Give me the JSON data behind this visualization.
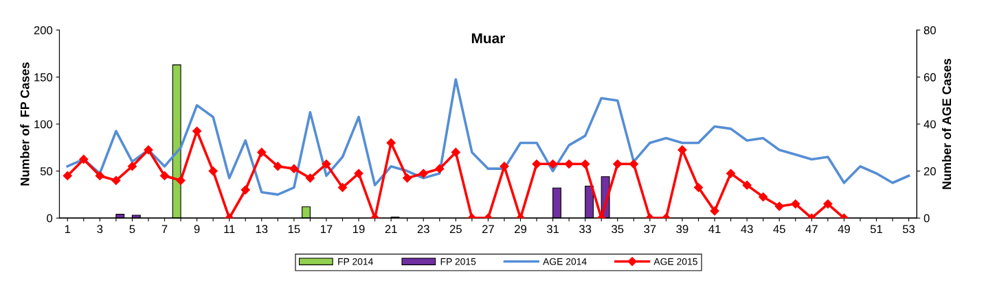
{
  "chart_data": {
    "type": "bar",
    "title": "Muar",
    "ylabel": "Number of  FP Cases",
    "y2label": "Number of AGE Cases",
    "categories": [
      "1",
      null,
      "3",
      null,
      "5",
      null,
      "7",
      null,
      "9",
      null,
      "11",
      null,
      "13",
      null,
      "15",
      null,
      "17",
      null,
      "19",
      null,
      "21",
      null,
      "23",
      null,
      "25",
      null,
      "27",
      null,
      "29",
      null,
      "31",
      null,
      "33",
      null,
      "35",
      null,
      "37",
      null,
      "39",
      null,
      "41",
      null,
      "43",
      null,
      "45",
      null,
      "47",
      null,
      "49",
      null,
      "51",
      null,
      "53"
    ],
    "ylim": [
      0,
      200
    ],
    "yticks": [
      0,
      50,
      100,
      150,
      200
    ],
    "y2lim": [
      0,
      80
    ],
    "y2ticks": [
      0,
      20,
      40,
      60,
      80
    ],
    "grid": false,
    "legend": "bottom",
    "series": [
      {
        "name": "FP 2014",
        "axis": "y",
        "color": "#92d050",
        "values": [
          null,
          null,
          null,
          null,
          null,
          null,
          null,
          163,
          null,
          null,
          null,
          null,
          null,
          null,
          null,
          12,
          null,
          null,
          null,
          null,
          null,
          null,
          null,
          null,
          null,
          null,
          null,
          null,
          null,
          null,
          null,
          null,
          null,
          null,
          null,
          null,
          null,
          null,
          null,
          null,
          null,
          null,
          null,
          null,
          null,
          null,
          null,
          null,
          null,
          null,
          null,
          null,
          null
        ]
      },
      {
        "name": "FP 2015",
        "axis": "y",
        "color": "#7030a0",
        "values": [
          null,
          null,
          null,
          4,
          3,
          null,
          null,
          null,
          null,
          null,
          null,
          null,
          null,
          null,
          null,
          null,
          null,
          null,
          null,
          null,
          1,
          null,
          null,
          null,
          null,
          null,
          null,
          null,
          null,
          null,
          32,
          null,
          34,
          44,
          null,
          null,
          null,
          null,
          null,
          null,
          null,
          null,
          null,
          null,
          null,
          null,
          null,
          null,
          null,
          null,
          null,
          null,
          null
        ]
      },
      {
        "name": "AGE 2014",
        "type": "line",
        "axis": "y2",
        "color": "#558ed5",
        "marker": "none",
        "values": [
          22,
          25,
          19,
          37,
          24,
          29,
          22,
          30,
          48,
          43,
          17,
          33,
          11,
          10,
          13,
          45,
          18,
          26,
          43,
          14,
          22,
          20,
          17,
          19,
          59,
          28,
          21,
          21,
          32,
          32,
          20,
          31,
          35,
          51,
          50,
          24,
          32,
          34,
          32,
          32,
          39,
          38,
          33,
          34,
          29,
          27,
          25,
          26,
          15,
          22,
          19,
          15,
          18
        ]
      },
      {
        "name": "AGE 2015",
        "type": "line",
        "axis": "y2",
        "color": "#ff0000",
        "marker": "diamond",
        "values": [
          18,
          25,
          18,
          16,
          22,
          29,
          18,
          16,
          37,
          20,
          0,
          12,
          28,
          22,
          21,
          17,
          23,
          13,
          19,
          0,
          32,
          17,
          19,
          21,
          28,
          0,
          0,
          22,
          0,
          23,
          23,
          23,
          23,
          0,
          23,
          23,
          0,
          0,
          29,
          13,
          3,
          19,
          14,
          9,
          5,
          6,
          0,
          6,
          0,
          null,
          null,
          null,
          null
        ]
      }
    ]
  }
}
